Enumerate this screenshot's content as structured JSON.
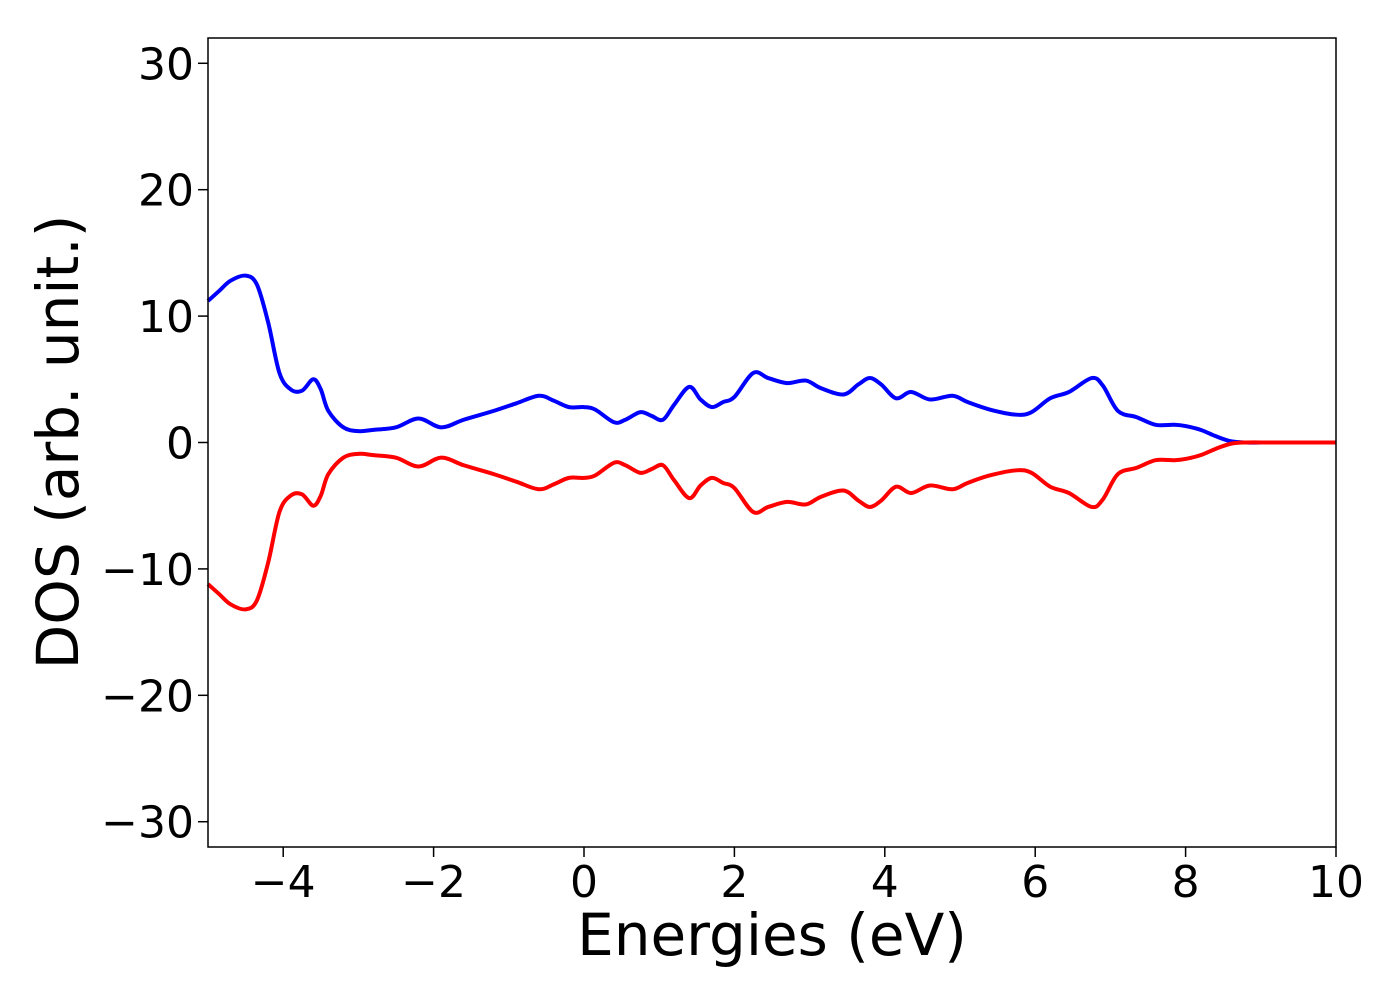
{
  "chart_data": {
    "type": "line",
    "title": "",
    "xlabel": "Energies (eV)",
    "ylabel": "DOS (arb. unit.)",
    "xlim": [
      -5,
      10
    ],
    "ylim": [
      -32,
      32
    ],
    "xticks": [
      -4,
      -2,
      0,
      2,
      4,
      6,
      8,
      10
    ],
    "yticks": [
      -30,
      -20,
      -10,
      0,
      10,
      20,
      30
    ],
    "xtick_labels": [
      "−4",
      "−2",
      "0",
      "2",
      "4",
      "6",
      "8",
      "10"
    ],
    "ytick_labels": [
      "−30",
      "−20",
      "−10",
      "0",
      "10",
      "20",
      "30"
    ],
    "grid": false,
    "legend": "none",
    "series": [
      {
        "color": "#0000ff",
        "x": [
          -5.0,
          -4.85,
          -4.7,
          -4.5,
          -4.35,
          -4.2,
          -4.05,
          -3.9,
          -3.75,
          -3.6,
          -3.5,
          -3.4,
          -3.2,
          -3.0,
          -2.8,
          -2.5,
          -2.2,
          -1.9,
          -1.6,
          -1.2,
          -0.9,
          -0.6,
          -0.4,
          -0.2,
          0.0,
          0.15,
          0.4,
          0.55,
          0.75,
          0.9,
          1.05,
          1.2,
          1.4,
          1.55,
          1.7,
          1.85,
          2.0,
          2.25,
          2.45,
          2.7,
          2.95,
          3.15,
          3.45,
          3.65,
          3.8,
          3.95,
          4.15,
          4.35,
          4.6,
          4.9,
          5.1,
          5.4,
          5.75,
          5.95,
          6.2,
          6.45,
          6.75,
          6.9,
          7.1,
          7.35,
          7.6,
          7.85,
          8.0,
          8.2,
          8.4,
          8.6,
          8.8,
          9.2,
          10.0
        ],
        "y": [
          11.2,
          12.0,
          12.8,
          13.2,
          12.5,
          9.5,
          5.5,
          4.2,
          4.1,
          5.0,
          4.2,
          2.5,
          1.2,
          0.9,
          1.0,
          1.2,
          1.9,
          1.2,
          1.8,
          2.5,
          3.1,
          3.7,
          3.3,
          2.8,
          2.8,
          2.6,
          1.6,
          1.8,
          2.4,
          2.1,
          1.8,
          3.0,
          4.4,
          3.4,
          2.8,
          3.2,
          3.6,
          5.5,
          5.1,
          4.7,
          4.9,
          4.3,
          3.8,
          4.6,
          5.1,
          4.6,
          3.5,
          4.0,
          3.4,
          3.7,
          3.2,
          2.6,
          2.2,
          2.4,
          3.5,
          4.0,
          5.1,
          4.5,
          2.5,
          2.0,
          1.4,
          1.4,
          1.3,
          1.0,
          0.5,
          0.1,
          0.0,
          0.0,
          0.0
        ]
      },
      {
        "color": "#ff0000",
        "x": [
          -5.0,
          -4.85,
          -4.7,
          -4.5,
          -4.35,
          -4.2,
          -4.05,
          -3.9,
          -3.75,
          -3.6,
          -3.5,
          -3.4,
          -3.2,
          -3.0,
          -2.8,
          -2.5,
          -2.2,
          -1.9,
          -1.6,
          -1.2,
          -0.9,
          -0.6,
          -0.4,
          -0.2,
          0.0,
          0.15,
          0.4,
          0.55,
          0.75,
          0.9,
          1.05,
          1.2,
          1.4,
          1.55,
          1.7,
          1.85,
          2.0,
          2.25,
          2.45,
          2.7,
          2.95,
          3.15,
          3.45,
          3.65,
          3.8,
          3.95,
          4.15,
          4.35,
          4.6,
          4.9,
          5.1,
          5.4,
          5.75,
          5.95,
          6.2,
          6.45,
          6.75,
          6.9,
          7.1,
          7.35,
          7.6,
          7.85,
          8.0,
          8.2,
          8.4,
          8.6,
          8.8,
          9.2,
          10.0
        ],
        "y": [
          -11.2,
          -12.0,
          -12.8,
          -13.2,
          -12.5,
          -9.5,
          -5.5,
          -4.2,
          -4.1,
          -5.0,
          -4.2,
          -2.5,
          -1.2,
          -0.9,
          -1.0,
          -1.2,
          -1.9,
          -1.2,
          -1.8,
          -2.5,
          -3.1,
          -3.7,
          -3.3,
          -2.8,
          -2.8,
          -2.6,
          -1.6,
          -1.8,
          -2.4,
          -2.1,
          -1.8,
          -3.0,
          -4.4,
          -3.4,
          -2.8,
          -3.2,
          -3.6,
          -5.5,
          -5.1,
          -4.7,
          -4.9,
          -4.3,
          -3.8,
          -4.6,
          -5.1,
          -4.6,
          -3.5,
          -4.0,
          -3.4,
          -3.7,
          -3.2,
          -2.6,
          -2.2,
          -2.4,
          -3.5,
          -4.0,
          -5.1,
          -4.5,
          -2.5,
          -2.0,
          -1.4,
          -1.4,
          -1.3,
          -1.0,
          -0.5,
          -0.1,
          0.0,
          0.0,
          0.0
        ]
      }
    ]
  }
}
